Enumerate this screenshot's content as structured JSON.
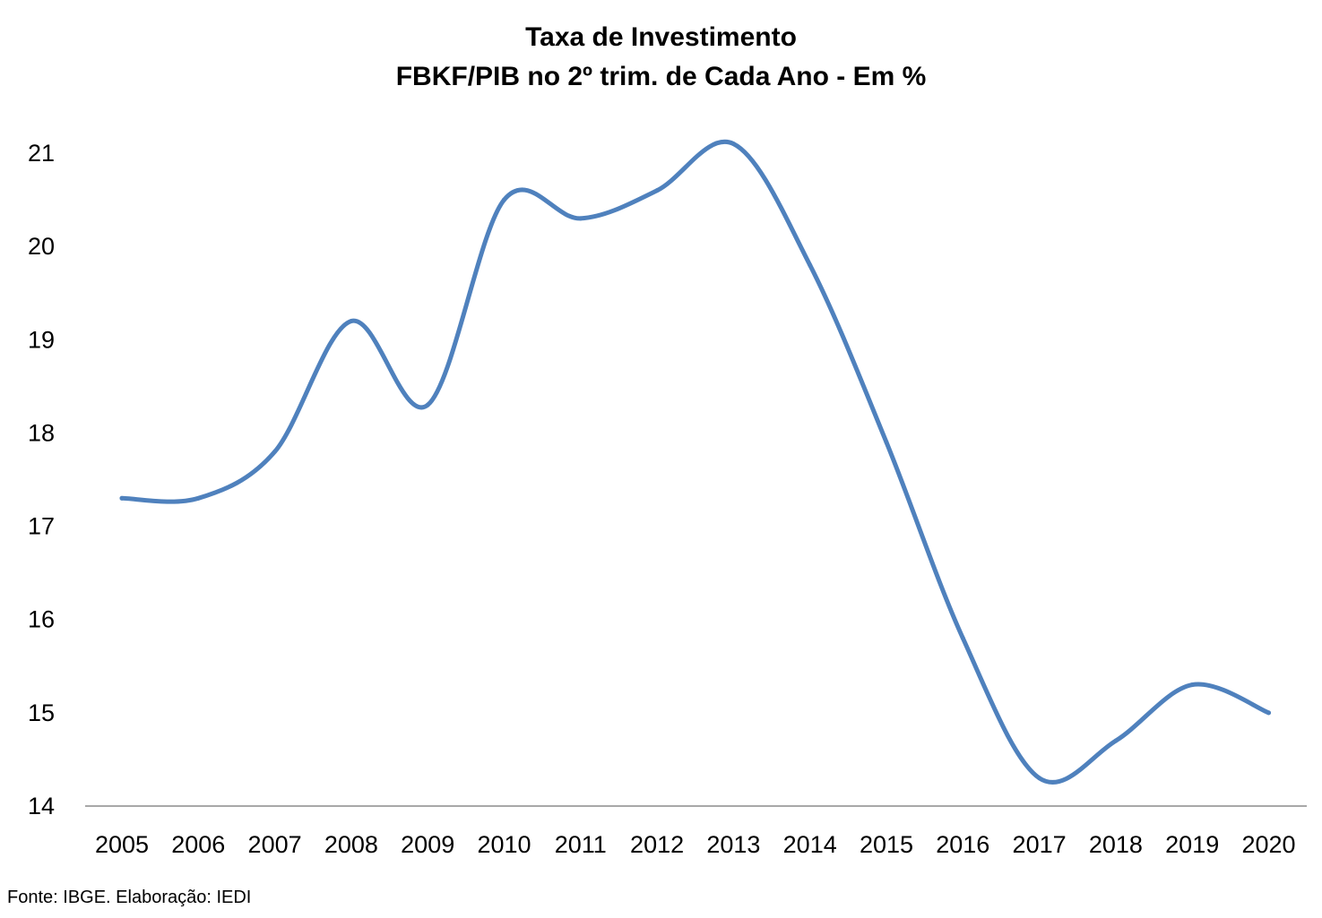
{
  "chart_data": {
    "type": "line",
    "title": "Taxa de Investimento",
    "subtitle": "FBKF/PIB no 2º trim. de Cada Ano - Em %",
    "xlabel": "",
    "ylabel": "",
    "categories": [
      "2005",
      "2006",
      "2007",
      "2008",
      "2009",
      "2010",
      "2011",
      "2012",
      "2013",
      "2014",
      "2015",
      "2016",
      "2017",
      "2018",
      "2019",
      "2020"
    ],
    "series": [
      {
        "name": "",
        "values": [
          17.3,
          17.3,
          17.8,
          19.2,
          18.3,
          20.5,
          20.3,
          20.6,
          21.1,
          19.8,
          17.9,
          15.8,
          14.3,
          14.7,
          15.3,
          15.0
        ]
      }
    ],
    "yticks": [
      14,
      15,
      16,
      17,
      18,
      19,
      20,
      21
    ],
    "ylim": [
      14,
      21
    ],
    "grid": false,
    "legend": "none",
    "line_color": "#4F81BD"
  },
  "source": "Fonte: IBGE. Elaboração: IEDI"
}
